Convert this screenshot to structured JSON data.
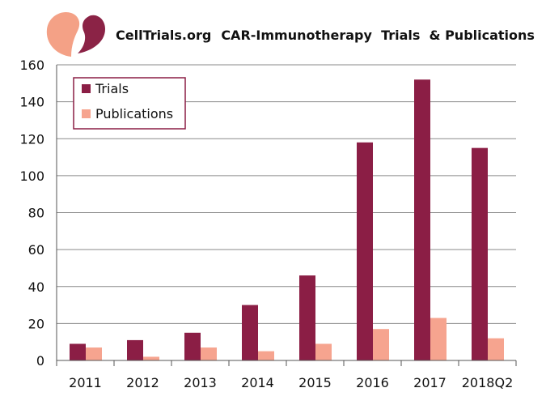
{
  "header": {
    "site_name": "CellTrials.org",
    "chart_title": "CAR-Immunotherapy  Trials  & Publications"
  },
  "logo": {
    "left_color": "#f4a186",
    "right_color": "#8b2346"
  },
  "colors": {
    "trials": "#8b1e45",
    "publications": "#f6a48f",
    "grid": "#8a8a8a",
    "axis": "#555555"
  },
  "chart_data": {
    "type": "bar",
    "categories": [
      "2011",
      "2012",
      "2013",
      "2014",
      "2015",
      "2016",
      "2017",
      "2018Q2"
    ],
    "series": [
      {
        "name": "Trials",
        "values": [
          9,
          11,
          15,
          30,
          46,
          118,
          152,
          115
        ]
      },
      {
        "name": "Publications",
        "values": [
          7,
          2,
          7,
          5,
          9,
          17,
          23,
          12
        ]
      }
    ],
    "ylim": [
      0,
      160
    ],
    "yticks": [
      0,
      20,
      40,
      60,
      80,
      100,
      120,
      140,
      160
    ],
    "grid": true,
    "legend": "top-left"
  }
}
